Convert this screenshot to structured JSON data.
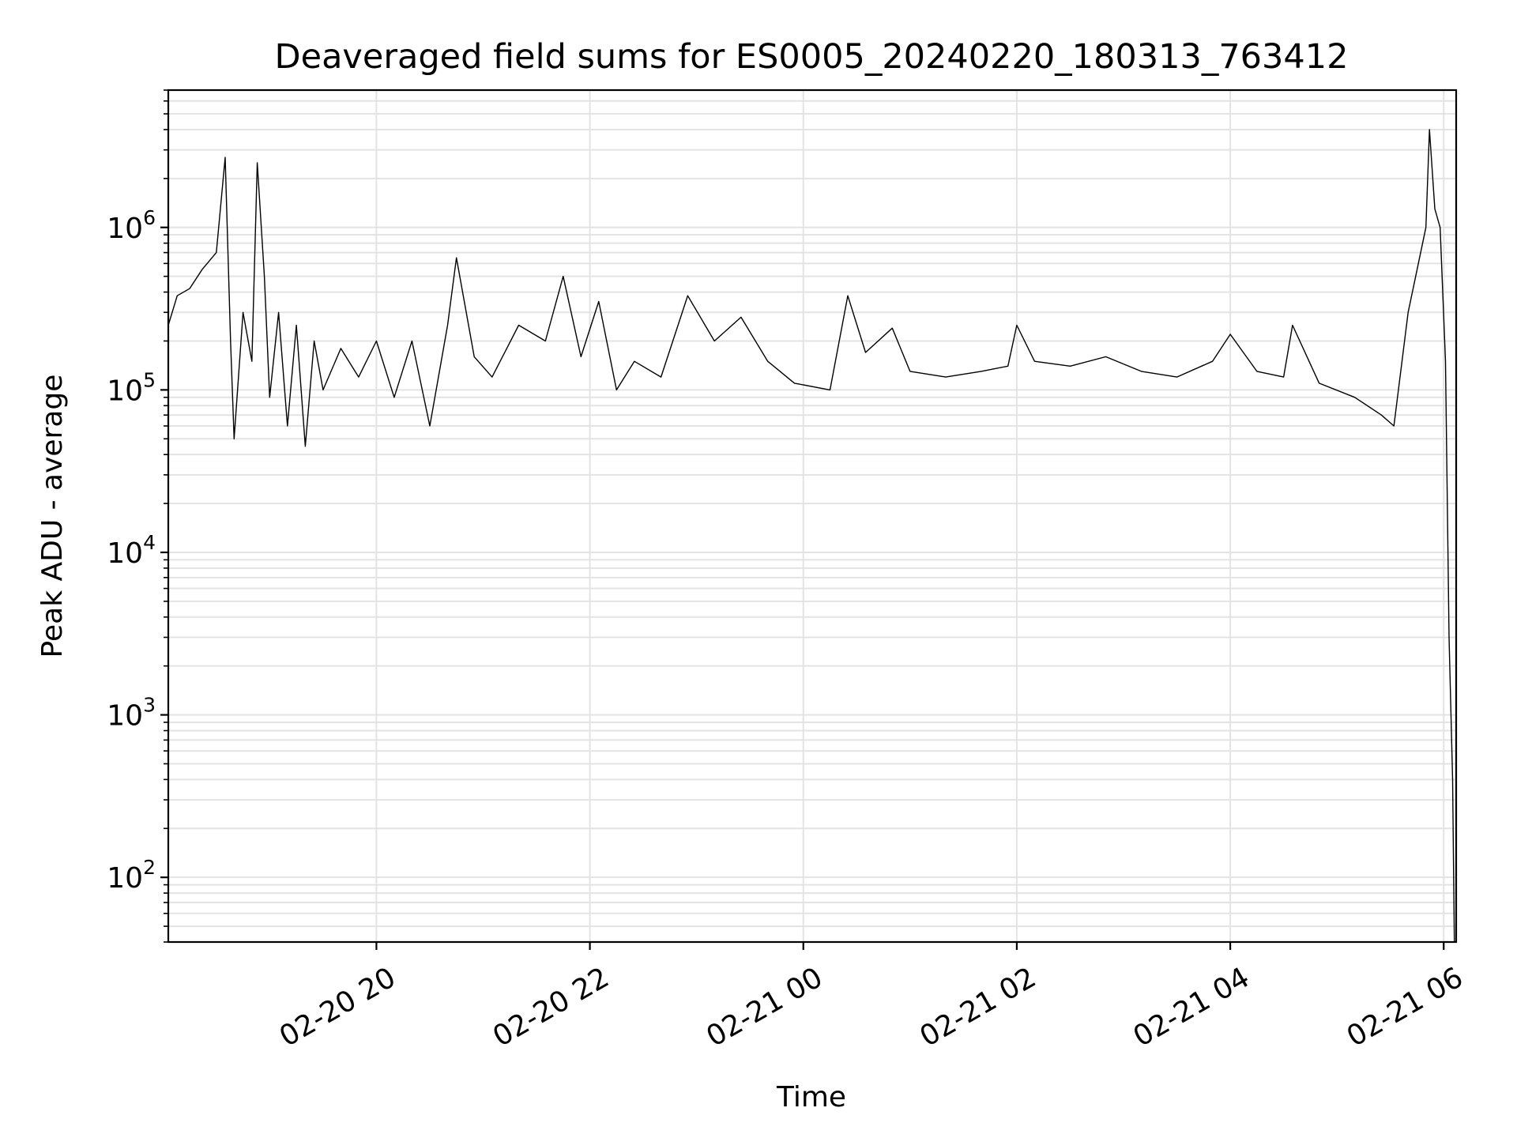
{
  "chart_data": {
    "type": "line",
    "title": "Deaveraged field sums for ES0005_20240220_180313_763412",
    "xlabel": "Time",
    "ylabel": "Peak ADU - average",
    "yscale": "log",
    "ylim": [
      40,
      7000000
    ],
    "xlim": [
      "2024-02-20 18:03",
      "2024-02-21 06:07"
    ],
    "grid": "on (major and minor)",
    "x_ticks": [
      {
        "value": "2024-02-20 20:00",
        "label": "02-20 20"
      },
      {
        "value": "2024-02-20 22:00",
        "label": "02-20 22"
      },
      {
        "value": "2024-02-21 00:00",
        "label": "02-21 00"
      },
      {
        "value": "2024-02-21 02:00",
        "label": "02-21 02"
      },
      {
        "value": "2024-02-21 04:00",
        "label": "02-21 04"
      },
      {
        "value": "2024-02-21 06:00",
        "label": "02-21 06"
      }
    ],
    "y_ticks": [
      {
        "value": 100,
        "base": "10",
        "exp": "2"
      },
      {
        "value": 1000,
        "base": "10",
        "exp": "3"
      },
      {
        "value": 10000,
        "base": "10",
        "exp": "4"
      },
      {
        "value": 100000,
        "base": "10",
        "exp": "5"
      },
      {
        "value": 1000000,
        "base": "10",
        "exp": "6"
      }
    ],
    "series": [
      {
        "color": "#000000",
        "points": [
          [
            "2024-02-20 18:03",
            250000
          ],
          [
            "2024-02-20 18:08",
            380000
          ],
          [
            "2024-02-20 18:15",
            420000
          ],
          [
            "2024-02-20 18:22",
            550000
          ],
          [
            "2024-02-20 18:30",
            700000
          ],
          [
            "2024-02-20 18:35",
            2700000
          ],
          [
            "2024-02-20 18:38",
            200000
          ],
          [
            "2024-02-20 18:40",
            50000
          ],
          [
            "2024-02-20 18:45",
            300000
          ],
          [
            "2024-02-20 18:50",
            150000
          ],
          [
            "2024-02-20 18:53",
            2500000
          ],
          [
            "2024-02-20 18:57",
            500000
          ],
          [
            "2024-02-20 19:00",
            90000
          ],
          [
            "2024-02-20 19:05",
            300000
          ],
          [
            "2024-02-20 19:10",
            60000
          ],
          [
            "2024-02-20 19:15",
            250000
          ],
          [
            "2024-02-20 19:20",
            45000
          ],
          [
            "2024-02-20 19:25",
            200000
          ],
          [
            "2024-02-20 19:30",
            100000
          ],
          [
            "2024-02-20 19:40",
            180000
          ],
          [
            "2024-02-20 19:50",
            120000
          ],
          [
            "2024-02-20 20:00",
            200000
          ],
          [
            "2024-02-20 20:10",
            90000
          ],
          [
            "2024-02-20 20:20",
            200000
          ],
          [
            "2024-02-20 20:30",
            60000
          ],
          [
            "2024-02-20 20:40",
            250000
          ],
          [
            "2024-02-20 20:45",
            650000
          ],
          [
            "2024-02-20 20:55",
            160000
          ],
          [
            "2024-02-20 21:05",
            120000
          ],
          [
            "2024-02-20 21:20",
            250000
          ],
          [
            "2024-02-20 21:35",
            200000
          ],
          [
            "2024-02-20 21:45",
            500000
          ],
          [
            "2024-02-20 21:55",
            160000
          ],
          [
            "2024-02-20 22:05",
            350000
          ],
          [
            "2024-02-20 22:15",
            100000
          ],
          [
            "2024-02-20 22:25",
            150000
          ],
          [
            "2024-02-20 22:40",
            120000
          ],
          [
            "2024-02-20 22:55",
            380000
          ],
          [
            "2024-02-20 23:10",
            200000
          ],
          [
            "2024-02-20 23:25",
            280000
          ],
          [
            "2024-02-20 23:40",
            150000
          ],
          [
            "2024-02-20 23:55",
            110000
          ],
          [
            "2024-02-21 00:15",
            100000
          ],
          [
            "2024-02-21 00:25",
            380000
          ],
          [
            "2024-02-21 00:35",
            170000
          ],
          [
            "2024-02-21 00:50",
            240000
          ],
          [
            "2024-02-21 01:00",
            130000
          ],
          [
            "2024-02-21 01:20",
            120000
          ],
          [
            "2024-02-21 01:40",
            130000
          ],
          [
            "2024-02-21 01:55",
            140000
          ],
          [
            "2024-02-21 02:00",
            250000
          ],
          [
            "2024-02-21 02:10",
            150000
          ],
          [
            "2024-02-21 02:30",
            140000
          ],
          [
            "2024-02-21 02:50",
            160000
          ],
          [
            "2024-02-21 03:10",
            130000
          ],
          [
            "2024-02-21 03:30",
            120000
          ],
          [
            "2024-02-21 03:50",
            150000
          ],
          [
            "2024-02-21 04:00",
            220000
          ],
          [
            "2024-02-21 04:15",
            130000
          ],
          [
            "2024-02-21 04:30",
            120000
          ],
          [
            "2024-02-21 04:35",
            250000
          ],
          [
            "2024-02-21 04:50",
            110000
          ],
          [
            "2024-02-21 05:10",
            90000
          ],
          [
            "2024-02-21 05:25",
            70000
          ],
          [
            "2024-02-21 05:32",
            60000
          ],
          [
            "2024-02-21 05:40",
            300000
          ],
          [
            "2024-02-21 05:50",
            1000000
          ],
          [
            "2024-02-21 05:52",
            4000000
          ],
          [
            "2024-02-21 05:55",
            1300000
          ],
          [
            "2024-02-21 05:58",
            1000000
          ],
          [
            "2024-02-21 06:01",
            150000
          ],
          [
            "2024-02-21 06:03",
            3000
          ],
          [
            "2024-02-21 06:05",
            400
          ],
          [
            "2024-02-21 06:06",
            40
          ]
        ]
      }
    ]
  }
}
